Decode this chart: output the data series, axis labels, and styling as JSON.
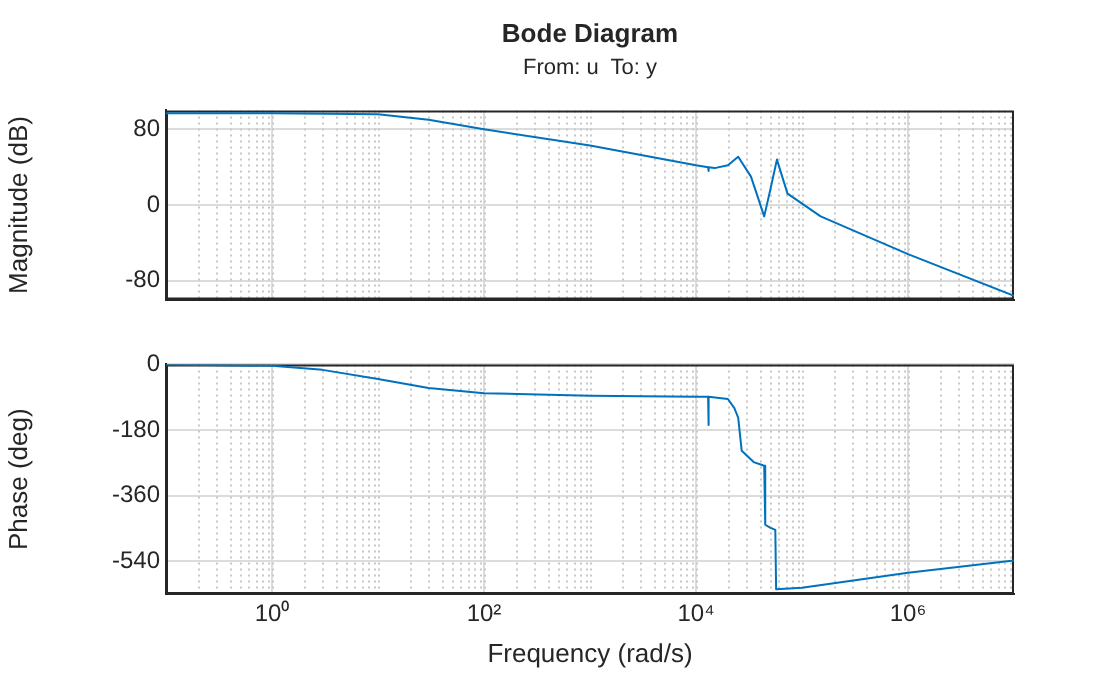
{
  "chart_data": [
    {
      "type": "line",
      "title": "Bode Diagram",
      "subtitle": "From: u  To: y",
      "ylabel": "Magnitude (dB)",
      "log": "x",
      "grid": true,
      "legend": false,
      "tick_labels": "y",
      "marker": "none",
      "xlim": [
        0.1,
        10000000
      ],
      "xticks": [
        1,
        100,
        10000,
        1000000
      ],
      "ylim": [
        -100,
        100
      ],
      "yticks": [
        -80,
        0,
        80
      ],
      "series": [
        {
          "color": "#0072bd",
          "x": [
            0.1,
            1,
            10,
            30,
            100,
            1000,
            10000,
            13000,
            13100,
            13200,
            15000,
            20000,
            25000,
            33000,
            44000,
            50000,
            58000,
            73000,
            150000,
            1000000,
            10000000
          ],
          "values": [
            97,
            97,
            96,
            90,
            80,
            63,
            42,
            40,
            36,
            40,
            39,
            42,
            51,
            30,
            -12,
            15,
            48,
            12,
            -12,
            -52,
            -96
          ]
        }
      ]
    },
    {
      "type": "line",
      "xlabel": "Frequency (rad/s)",
      "ylabel": "Phase (deg)",
      "log": "x",
      "grid": true,
      "legend": false,
      "marker": "none",
      "xlim": [
        0.1,
        10000000
      ],
      "xticks": [
        {
          "value": 1,
          "label": "10⁰"
        },
        {
          "value": 100,
          "label": "10²"
        },
        {
          "value": 10000,
          "label": "10⁴"
        },
        {
          "value": 1000000,
          "label": "10⁶"
        }
      ],
      "ylim": [
        -630,
        0
      ],
      "yticks": [
        -540,
        -360,
        -180,
        0
      ],
      "series": [
        {
          "color": "#0072bd",
          "x": [
            0.1,
            1,
            3,
            10,
            30,
            100,
            1000,
            10000,
            13000,
            13100,
            13200,
            20000,
            23000,
            25000,
            27000,
            35000,
            44000,
            45000,
            50000,
            56000,
            57000,
            100000,
            1000000,
            10000000
          ],
          "values": [
            0,
            -4,
            -15,
            -40,
            -65,
            -79,
            -86,
            -89,
            -89,
            -166,
            -89,
            -95,
            -120,
            -146,
            -237,
            -268,
            -278,
            -440,
            -448,
            -454,
            -617,
            -613,
            -572,
            -538
          ]
        }
      ]
    }
  ]
}
